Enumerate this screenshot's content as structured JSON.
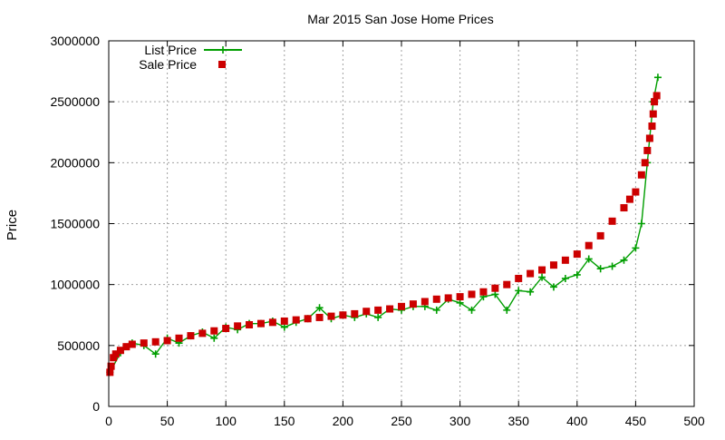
{
  "chart_data": {
    "type": "scatter",
    "title": "Mar 2015 San Jose Home Prices",
    "xlabel": "",
    "ylabel": "Price",
    "xlim": [
      0,
      500
    ],
    "ylim": [
      0,
      3000000
    ],
    "x_ticks": [
      "0",
      "50",
      "100",
      "150",
      "200",
      "250",
      "300",
      "350",
      "400",
      "450",
      "500"
    ],
    "y_ticks": [
      "0",
      "500000",
      "1000000",
      "1500000",
      "2000000",
      "2500000",
      "3000000"
    ],
    "grid": true,
    "legend_position": "top-left",
    "series": [
      {
        "name": "List Price",
        "style": "lines+crosses",
        "color": "#009e00",
        "x": [
          1,
          10,
          20,
          30,
          40,
          50,
          60,
          70,
          80,
          90,
          100,
          110,
          120,
          130,
          140,
          150,
          160,
          170,
          180,
          190,
          200,
          210,
          220,
          230,
          240,
          250,
          260,
          270,
          280,
          290,
          300,
          310,
          320,
          330,
          340,
          350,
          360,
          370,
          380,
          390,
          400,
          410,
          420,
          430,
          440,
          450,
          455,
          460,
          465,
          469
        ],
        "y": [
          280000,
          440000,
          520000,
          500000,
          430000,
          560000,
          520000,
          580000,
          610000,
          560000,
          650000,
          630000,
          680000,
          680000,
          700000,
          650000,
          690000,
          720000,
          810000,
          720000,
          750000,
          730000,
          760000,
          730000,
          800000,
          790000,
          820000,
          820000,
          790000,
          880000,
          850000,
          790000,
          900000,
          920000,
          790000,
          950000,
          940000,
          1060000,
          980000,
          1050000,
          1080000,
          1210000,
          1130000,
          1150000,
          1200000,
          1300000,
          1500000,
          2000000,
          2500000,
          2700000
        ]
      },
      {
        "name": "Sale Price",
        "style": "squares",
        "color": "#cc0000",
        "x": [
          1,
          2,
          4,
          6,
          10,
          15,
          20,
          30,
          40,
          50,
          60,
          70,
          80,
          90,
          100,
          110,
          120,
          130,
          140,
          150,
          160,
          170,
          180,
          190,
          200,
          210,
          220,
          230,
          240,
          250,
          260,
          270,
          280,
          290,
          300,
          310,
          320,
          330,
          340,
          350,
          360,
          370,
          380,
          390,
          400,
          410,
          420,
          430,
          440,
          445,
          450,
          455,
          458,
          460,
          462,
          464,
          465,
          466,
          468
        ],
        "y": [
          280000,
          330000,
          400000,
          430000,
          460000,
          490000,
          510000,
          520000,
          530000,
          540000,
          560000,
          580000,
          600000,
          620000,
          640000,
          660000,
          670000,
          680000,
          690000,
          700000,
          710000,
          720000,
          730000,
          740000,
          750000,
          760000,
          780000,
          790000,
          800000,
          820000,
          840000,
          860000,
          880000,
          890000,
          900000,
          920000,
          940000,
          970000,
          1000000,
          1050000,
          1090000,
          1120000,
          1160000,
          1200000,
          1250000,
          1320000,
          1400000,
          1520000,
          1630000,
          1700000,
          1760000,
          1900000,
          2000000,
          2100000,
          2200000,
          2300000,
          2400000,
          2500000,
          2550000
        ]
      }
    ]
  }
}
